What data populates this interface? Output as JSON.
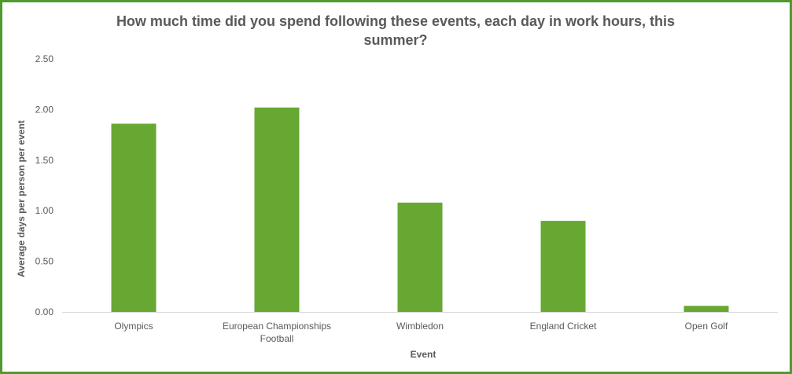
{
  "chart_data": {
    "type": "bar",
    "title": "How much time did you spend following these events, each day in work hours, this summer?",
    "xlabel": "Event",
    "ylabel": "Average days per person per event",
    "categories": [
      [
        "Olympics"
      ],
      [
        "European Championships",
        "Football"
      ],
      [
        "Wimbledon"
      ],
      [
        "England Cricket"
      ],
      [
        "Open Golf"
      ]
    ],
    "values": [
      1.86,
      2.02,
      1.08,
      0.9,
      0.06
    ],
    "ylim": [
      0,
      2.5
    ],
    "yticks": [
      "0.00",
      "0.50",
      "1.00",
      "1.50",
      "2.00",
      "2.50"
    ],
    "ytick_values": [
      0,
      0.5,
      1,
      1.5,
      2,
      2.5
    ],
    "grid": false,
    "legend": "none",
    "colors": {
      "bar": "#67a832",
      "border": "#4f9a2f",
      "axis": "#d9d9d9",
      "text": "#595959"
    }
  }
}
